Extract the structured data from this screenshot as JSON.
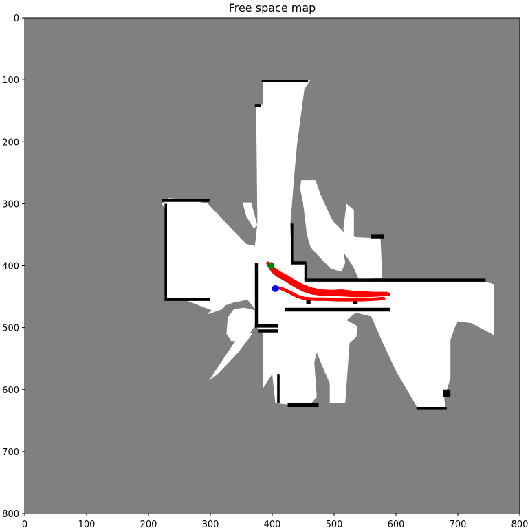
{
  "chart_data": {
    "type": "map",
    "title": "Free space map",
    "xlabel": "",
    "ylabel": "",
    "xlim": [
      0,
      800
    ],
    "ylim": [
      800,
      0
    ],
    "xticks": [
      0,
      100,
      200,
      300,
      400,
      500,
      600,
      700,
      800
    ],
    "yticks": [
      0,
      100,
      200,
      300,
      400,
      500,
      600,
      700,
      800
    ],
    "grid": false,
    "colors": {
      "unknown": "#808080",
      "free": "#ffffff",
      "obstacle": "#000000",
      "trajectory": "#ff0000",
      "start_marker": "#008000",
      "current_marker": "#0000ff"
    },
    "free_regions": [
      [
        [
          385,
          100
        ],
        [
          462,
          100
        ],
        [
          452,
          115
        ],
        [
          440,
          205
        ],
        [
          436,
          250
        ],
        [
          432,
          300
        ],
        [
          429,
          335
        ],
        [
          432,
          395
        ],
        [
          452,
          397
        ],
        [
          455,
          425
        ],
        [
          590,
          426
        ],
        [
          745,
          426
        ],
        [
          758,
          430
        ],
        [
          758,
          512
        ],
        [
          722,
          493
        ],
        [
          700,
          490
        ],
        [
          695,
          500
        ],
        [
          688,
          520
        ],
        [
          688,
          582
        ],
        [
          678,
          614
        ],
        [
          680,
          632
        ],
        [
          676,
          632
        ],
        [
          635,
          630
        ],
        [
          600,
          570
        ],
        [
          578,
          523
        ],
        [
          560,
          482
        ],
        [
          535,
          476
        ],
        [
          520,
          488
        ],
        [
          538,
          498
        ],
        [
          536,
          515
        ],
        [
          525,
          525
        ],
        [
          518,
          622
        ],
        [
          493,
          622
        ],
        [
          493,
          590
        ],
        [
          480,
          560
        ],
        [
          472,
          540
        ],
        [
          468,
          556
        ],
        [
          472,
          612
        ],
        [
          458,
          628
        ],
        [
          405,
          622
        ],
        [
          400,
          575
        ],
        [
          385,
          598
        ],
        [
          385,
          507
        ],
        [
          372,
          497
        ],
        [
          372,
          470
        ],
        [
          360,
          455
        ],
        [
          336,
          460
        ],
        [
          302,
          472
        ],
        [
          258,
          455
        ],
        [
          228,
          455
        ],
        [
          229,
          420
        ],
        [
          230,
          315
        ],
        [
          222,
          300
        ],
        [
          232,
          291
        ],
        [
          262,
          293
        ],
        [
          296,
          300
        ],
        [
          328,
          334
        ],
        [
          358,
          365
        ],
        [
          372,
          368
        ],
        [
          376,
          332
        ],
        [
          374,
          142
        ],
        [
          385,
          140
        ]
      ],
      [
        [
          447,
          262
        ],
        [
          470,
          262
        ],
        [
          478,
          285
        ],
        [
          500,
          333
        ],
        [
          518,
          350
        ],
        [
          515,
          375
        ],
        [
          518,
          395
        ],
        [
          512,
          410
        ],
        [
          495,
          405
        ],
        [
          480,
          390
        ],
        [
          462,
          370
        ],
        [
          456,
          350
        ],
        [
          450,
          300
        ],
        [
          445,
          275
        ]
      ],
      [
        [
          460,
          300
        ],
        [
          480,
          300
        ],
        [
          500,
          330
        ],
        [
          518,
          348
        ],
        [
          535,
          354
        ],
        [
          575,
          356
        ],
        [
          578,
          420
        ],
        [
          540,
          422
        ],
        [
          530,
          400
        ],
        [
          508,
          368
        ],
        [
          480,
          338
        ]
      ],
      [
        [
          520,
          300
        ],
        [
          532,
          310
        ],
        [
          532,
          370
        ],
        [
          520,
          370
        ],
        [
          515,
          340
        ]
      ],
      [
        [
          352,
          298
        ],
        [
          366,
          298
        ],
        [
          376,
          335
        ],
        [
          370,
          340
        ],
        [
          358,
          320
        ]
      ],
      [
        [
          328,
          484
        ],
        [
          338,
          470
        ],
        [
          355,
          468
        ],
        [
          372,
          472
        ],
        [
          380,
          493
        ],
        [
          370,
          500
        ],
        [
          356,
          520
        ],
        [
          334,
          522
        ],
        [
          326,
          510
        ]
      ],
      [
        [
          295,
          478
        ],
        [
          318,
          460
        ],
        [
          328,
          458
        ],
        [
          320,
          470
        ],
        [
          298,
          478
        ]
      ],
      [
        [
          298,
          585
        ],
        [
          340,
          522
        ],
        [
          356,
          505
        ],
        [
          368,
          510
        ],
        [
          345,
          540
        ],
        [
          312,
          575
        ]
      ],
      [
        [
          384,
          510
        ],
        [
          402,
          503
        ],
        [
          440,
          490
        ],
        [
          445,
          468
        ],
        [
          470,
          470
        ],
        [
          470,
          512
        ],
        [
          455,
          520
        ],
        [
          440,
          555
        ],
        [
          433,
          580
        ],
        [
          420,
          600
        ]
      ]
    ],
    "obstacles": [
      [
        [
          383,
          100
        ],
        [
          458,
          100
        ],
        [
          458,
          104
        ],
        [
          383,
          104
        ]
      ],
      [
        [
          372,
          140
        ],
        [
          382,
          140
        ],
        [
          382,
          144
        ],
        [
          372,
          144
        ]
      ],
      [
        [
          222,
          292
        ],
        [
          300,
          292
        ],
        [
          300,
          297
        ],
        [
          222,
          297
        ]
      ],
      [
        [
          226,
          300
        ],
        [
          230,
          300
        ],
        [
          230,
          455
        ],
        [
          226,
          455
        ]
      ],
      [
        [
          226,
          452
        ],
        [
          300,
          452
        ],
        [
          300,
          457
        ],
        [
          226,
          457
        ]
      ],
      [
        [
          372,
          395
        ],
        [
          378,
          395
        ],
        [
          378,
          498
        ],
        [
          372,
          498
        ]
      ],
      [
        [
          372,
          494
        ],
        [
          410,
          494
        ],
        [
          410,
          500
        ],
        [
          372,
          500
        ]
      ],
      [
        [
          378,
          503
        ],
        [
          410,
          503
        ],
        [
          410,
          508
        ],
        [
          378,
          508
        ]
      ],
      [
        [
          420,
          468
        ],
        [
          590,
          468
        ],
        [
          590,
          474
        ],
        [
          420,
          474
        ]
      ],
      [
        [
          430,
          332
        ],
        [
          434,
          332
        ],
        [
          434,
          396
        ],
        [
          430,
          396
        ]
      ],
      [
        [
          430,
          393
        ],
        [
          455,
          393
        ],
        [
          455,
          398
        ],
        [
          430,
          398
        ]
      ],
      [
        [
          452,
          396
        ],
        [
          456,
          396
        ],
        [
          456,
          424
        ],
        [
          452,
          424
        ]
      ],
      [
        [
          452,
          421
        ],
        [
          745,
          421
        ],
        [
          745,
          426
        ],
        [
          452,
          426
        ]
      ],
      [
        [
          408,
          575
        ],
        [
          412,
          575
        ],
        [
          412,
          622
        ],
        [
          408,
          622
        ]
      ],
      [
        [
          425,
          622
        ],
        [
          475,
          622
        ],
        [
          475,
          628
        ],
        [
          425,
          628
        ]
      ],
      [
        [
          633,
          628
        ],
        [
          682,
          628
        ],
        [
          682,
          632
        ],
        [
          633,
          632
        ]
      ],
      [
        [
          560,
          350
        ],
        [
          580,
          350
        ],
        [
          580,
          356
        ],
        [
          560,
          356
        ]
      ],
      [
        [
          676,
          600
        ],
        [
          688,
          600
        ],
        [
          688,
          612
        ],
        [
          676,
          612
        ]
      ],
      [
        [
          455,
          455
        ],
        [
          462,
          455
        ],
        [
          462,
          462
        ],
        [
          455,
          462
        ]
      ],
      [
        [
          530,
          455
        ],
        [
          538,
          455
        ],
        [
          538,
          462
        ],
        [
          530,
          462
        ]
      ]
    ],
    "trajectory": [
      [
        [
          393,
          396
        ],
        [
          396,
          401
        ],
        [
          400,
          408
        ],
        [
          408,
          415
        ],
        [
          420,
          422
        ],
        [
          430,
          428
        ],
        [
          440,
          434
        ],
        [
          452,
          440
        ],
        [
          465,
          444
        ],
        [
          480,
          446
        ],
        [
          498,
          446
        ],
        [
          515,
          447
        ],
        [
          535,
          448
        ],
        [
          555,
          448
        ],
        [
          572,
          447
        ],
        [
          588,
          446
        ]
      ],
      [
        [
          405,
          435
        ],
        [
          415,
          437
        ],
        [
          428,
          443
        ],
        [
          440,
          449
        ],
        [
          452,
          453
        ],
        [
          468,
          454
        ],
        [
          485,
          454
        ],
        [
          505,
          455
        ],
        [
          525,
          455
        ],
        [
          545,
          455
        ],
        [
          565,
          454
        ],
        [
          580,
          453
        ]
      ],
      [
        [
          394,
          398
        ],
        [
          400,
          404
        ],
        [
          412,
          412
        ],
        [
          424,
          418
        ],
        [
          436,
          426
        ],
        [
          448,
          432
        ],
        [
          460,
          437
        ],
        [
          478,
          441
        ],
        [
          496,
          442
        ],
        [
          512,
          441
        ],
        [
          528,
          443
        ],
        [
          546,
          444
        ],
        [
          566,
          445
        ],
        [
          585,
          445
        ]
      ]
    ],
    "markers": [
      {
        "name": "start",
        "x": 398,
        "y": 400,
        "color": "#008000"
      },
      {
        "name": "current",
        "x": 405,
        "y": 437,
        "color": "#0000ff"
      }
    ]
  }
}
